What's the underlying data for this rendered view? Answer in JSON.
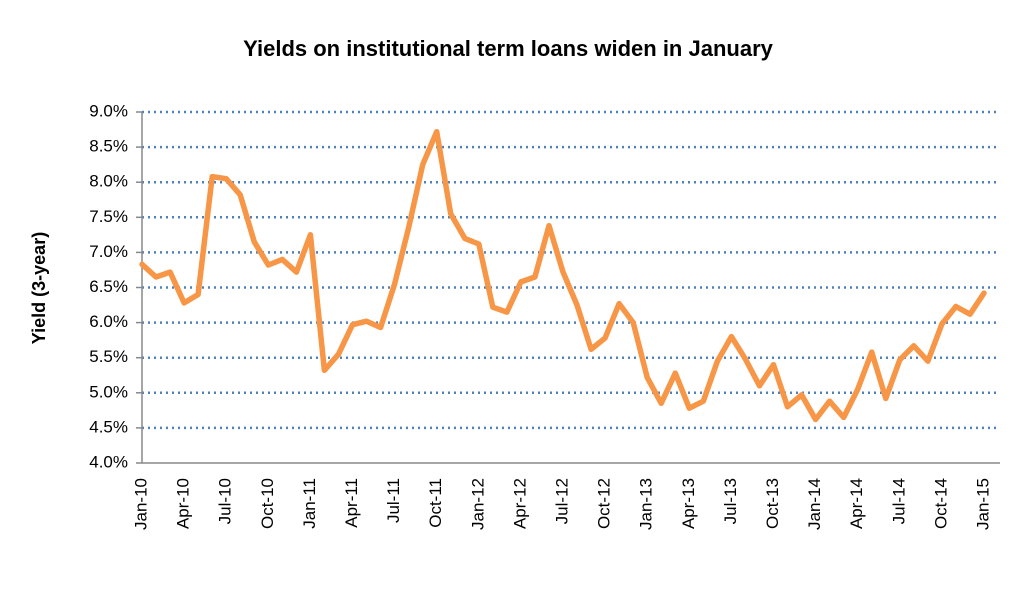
{
  "chart_data": {
    "type": "line",
    "title": "Yields on institutional term loans widen in January",
    "y_label": "Yield (3-year)",
    "categories": [
      "Jan-10",
      null,
      null,
      "Apr-10",
      null,
      null,
      "Jul-10",
      null,
      null,
      "Oct-10",
      null,
      null,
      "Jan-11",
      null,
      null,
      "Apr-11",
      null,
      null,
      "Jul-11",
      null,
      null,
      "Oct-11",
      null,
      null,
      "Jan-12",
      null,
      null,
      "Apr-12",
      null,
      null,
      "Jul-12",
      null,
      null,
      "Oct-12",
      null,
      null,
      "Jan-13",
      null,
      null,
      "Apr-13",
      null,
      null,
      "Jul-13",
      null,
      null,
      "Oct-13",
      null,
      null,
      "Jan-14",
      null,
      null,
      "Apr-14",
      null,
      null,
      "Jul-14",
      null,
      null,
      "Oct-14",
      null,
      null,
      "Jan-15"
    ],
    "values": [
      6.83,
      6.65,
      6.72,
      6.28,
      6.4,
      8.08,
      8.05,
      7.82,
      7.15,
      6.82,
      6.9,
      6.72,
      7.25,
      5.32,
      5.55,
      5.97,
      6.02,
      5.93,
      6.55,
      7.35,
      8.25,
      8.72,
      7.55,
      7.2,
      7.12,
      6.22,
      6.15,
      6.58,
      6.65,
      7.38,
      6.72,
      6.25,
      5.62,
      5.78,
      6.27,
      6.0,
      5.22,
      4.85,
      5.28,
      4.78,
      4.88,
      5.45,
      5.8,
      5.48,
      5.1,
      5.4,
      4.8,
      4.97,
      4.62,
      4.88,
      4.65,
      5.05,
      5.58,
      4.92,
      5.47,
      5.67,
      5.45,
      5.98,
      6.23,
      6.12,
      6.42
    ],
    "color": "#f79646",
    "ylim": [
      4.0,
      9.0
    ],
    "yticks": [
      {
        "value": 4.0,
        "label": "4.0%"
      },
      {
        "value": 4.5,
        "label": "4.5%"
      },
      {
        "value": 5.0,
        "label": "5.0%"
      },
      {
        "value": 5.5,
        "label": "5.5%"
      },
      {
        "value": 6.0,
        "label": "6.0%"
      },
      {
        "value": 6.5,
        "label": "6.5%"
      },
      {
        "value": 7.0,
        "label": "7.0%"
      },
      {
        "value": 7.5,
        "label": "7.5%"
      },
      {
        "value": 8.0,
        "label": "8.0%"
      },
      {
        "value": 8.5,
        "label": "8.5%"
      },
      {
        "value": 9.0,
        "label": "9.0%"
      }
    ],
    "grid": true,
    "grid_color": "#4f81bd"
  }
}
